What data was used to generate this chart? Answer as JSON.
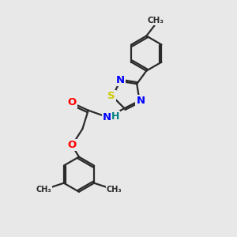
{
  "bg_color": "#e8e8e8",
  "bond_color": "#2a2a2a",
  "bond_width": 1.6,
  "atom_colors": {
    "N": "#0000ff",
    "O": "#ff0000",
    "S": "#cccc00",
    "H": "#008080",
    "C": "#2a2a2a"
  },
  "fig_size": [
    3.0,
    3.0
  ],
  "dpi": 100,
  "xlim": [
    0,
    10
  ],
  "ylim": [
    0,
    10
  ]
}
